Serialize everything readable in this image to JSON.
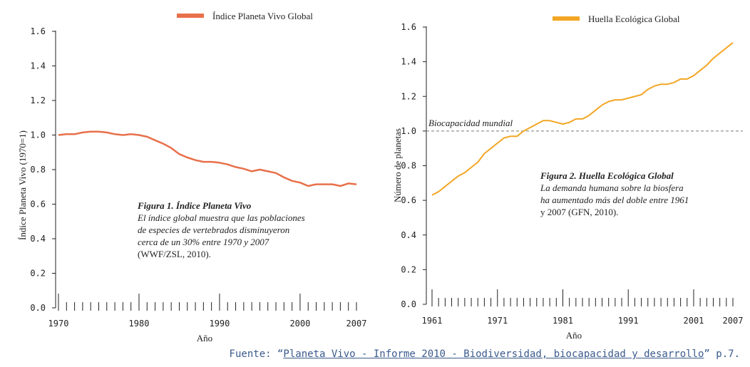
{
  "chart_data": [
    {
      "type": "line",
      "legend": "Índice Planeta Vivo Global",
      "ylabel": "Índice Planeta Vivo (1970=1)",
      "xlabel": "Año",
      "xlim": [
        1970,
        2007
      ],
      "ylim": [
        0,
        1.6
      ],
      "x_ticks": [
        "1970",
        "1980",
        "1990",
        "2000",
        "2007"
      ],
      "y_ticks": [
        "0.0",
        "0.2",
        "0.4",
        "0.6",
        "0.8",
        "1.0",
        "1.2",
        "1.4",
        "1.6"
      ],
      "color": "#e8704a",
      "series": [
        {
          "x": [
            1970,
            1971,
            1972,
            1973,
            1974,
            1975,
            1976,
            1977,
            1978,
            1979,
            1980,
            1981,
            1982,
            1983,
            1984,
            1985,
            1986,
            1987,
            1988,
            1989,
            1990,
            1991,
            1992,
            1993,
            1994,
            1995,
            1996,
            1997,
            1998,
            1999,
            2000,
            2001,
            2002,
            2003,
            2004,
            2005,
            2006,
            2007
          ],
          "y": [
            1.0,
            1.005,
            1.005,
            1.015,
            1.02,
            1.02,
            1.015,
            1.005,
            1.0,
            1.005,
            1.0,
            0.99,
            0.97,
            0.95,
            0.925,
            0.89,
            0.87,
            0.855,
            0.845,
            0.845,
            0.84,
            0.83,
            0.815,
            0.805,
            0.79,
            0.8,
            0.79,
            0.78,
            0.755,
            0.735,
            0.725,
            0.705,
            0.715,
            0.715,
            0.715,
            0.705,
            0.72,
            0.715
          ]
        }
      ],
      "caption": {
        "title": "Figura 1. Índice Planeta Vivo",
        "lines": [
          "El índice global muestra que las poblaciones",
          "de especies de vertebrados disminuyeron",
          "cerca de un 30% entre 1970 y 2007",
          "(WWF/ZSL, 2010)."
        ]
      }
    },
    {
      "type": "line",
      "legend": "Huella Ecológica Global",
      "ylabel": "Número de planetas",
      "xlabel": "Año",
      "xlim": [
        1961,
        2007
      ],
      "ylim": [
        0,
        1.6
      ],
      "x_ticks": [
        "1961",
        "1971",
        "1981",
        "1991",
        "2001",
        "2007"
      ],
      "y_ticks": [
        "0.0",
        "0.2",
        "0.4",
        "0.6",
        "0.8",
        "1.0",
        "1.2",
        "1.4",
        "1.6"
      ],
      "color": "#f2a623",
      "reference_line": {
        "y": 1.0,
        "label": "Biocapacidad mundial"
      },
      "series": [
        {
          "x": [
            1961,
            1962,
            1963,
            1964,
            1965,
            1966,
            1967,
            1968,
            1969,
            1970,
            1971,
            1972,
            1973,
            1974,
            1975,
            1976,
            1977,
            1978,
            1979,
            1980,
            1981,
            1982,
            1983,
            1984,
            1985,
            1986,
            1987,
            1988,
            1989,
            1990,
            1991,
            1992,
            1993,
            1994,
            1995,
            1996,
            1997,
            1998,
            1999,
            2000,
            2001,
            2002,
            2003,
            2004,
            2005,
            2006,
            2007
          ],
          "y": [
            0.63,
            0.65,
            0.68,
            0.71,
            0.74,
            0.76,
            0.79,
            0.82,
            0.87,
            0.9,
            0.93,
            0.96,
            0.97,
            0.97,
            1.0,
            1.02,
            1.04,
            1.06,
            1.06,
            1.05,
            1.04,
            1.05,
            1.07,
            1.07,
            1.09,
            1.12,
            1.15,
            1.17,
            1.18,
            1.18,
            1.19,
            1.2,
            1.21,
            1.24,
            1.26,
            1.27,
            1.27,
            1.28,
            1.3,
            1.3,
            1.32,
            1.35,
            1.38,
            1.42,
            1.45,
            1.48,
            1.51
          ]
        }
      ],
      "caption": {
        "title": "Figura 2. Huella Ecológica Global",
        "lines": [
          "La demanda humana sobre la biosfera",
          "ha aumentado más del doble entre 1961",
          "y 2007  (GFN, 2010)."
        ]
      }
    }
  ],
  "source": {
    "prefix": "Fuente: “",
    "link_text": "Planeta Vivo - Informe 2010 - Biodiversidad, biocapacidad y desarrollo",
    "suffix": "” p.7."
  }
}
